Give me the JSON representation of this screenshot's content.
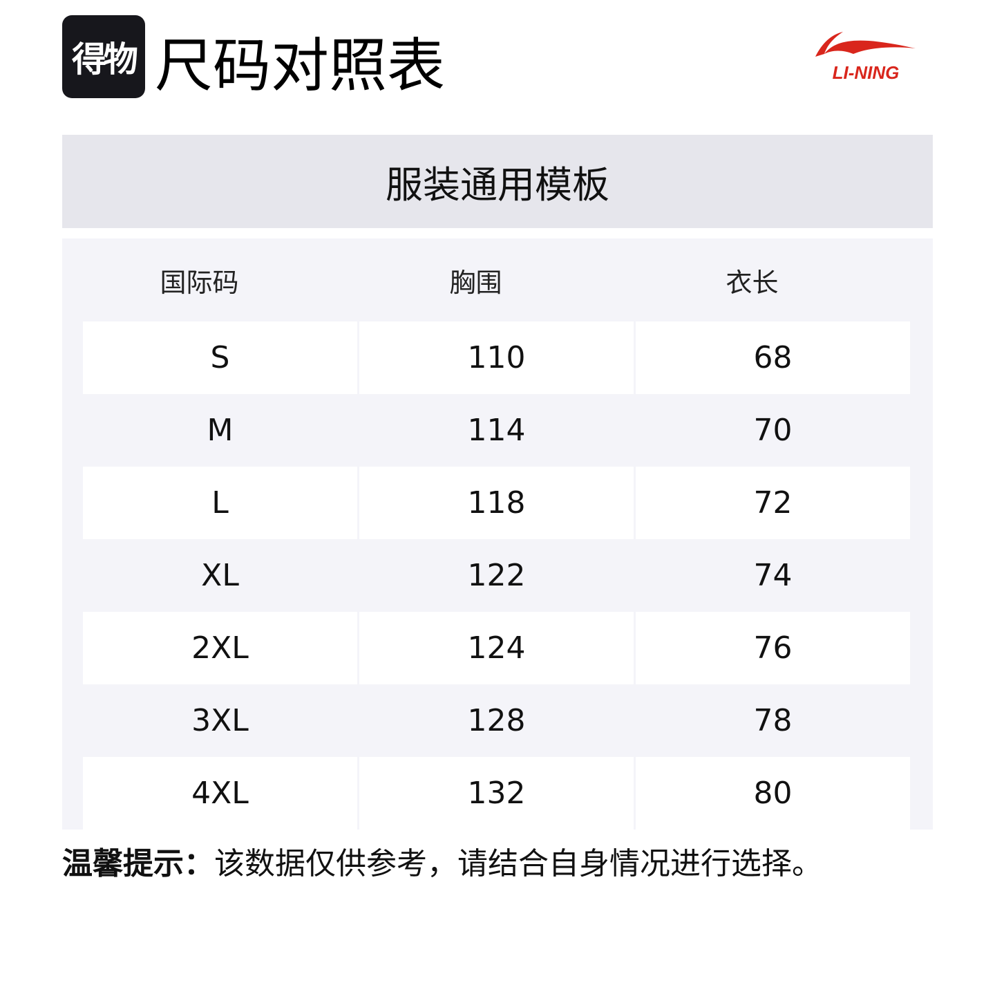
{
  "header": {
    "logo_text": "得物",
    "title": "尺码对照表",
    "brand_logo": "LI-NING",
    "brand_color": "#d9261c"
  },
  "band": {
    "title": "服装通用模板"
  },
  "table": {
    "columns": [
      "国际码",
      "胸围",
      "衣长"
    ],
    "rows": [
      [
        "S",
        "110",
        "68"
      ],
      [
        "M",
        "114",
        "70"
      ],
      [
        "L",
        "118",
        "72"
      ],
      [
        "XL",
        "122",
        "74"
      ],
      [
        "2XL",
        "124",
        "76"
      ],
      [
        "3XL",
        "128",
        "78"
      ],
      [
        "4XL",
        "132",
        "80"
      ]
    ]
  },
  "note": {
    "label": "温馨提示：",
    "text": "该数据仅供参考，请结合自身情况进行选择。"
  }
}
